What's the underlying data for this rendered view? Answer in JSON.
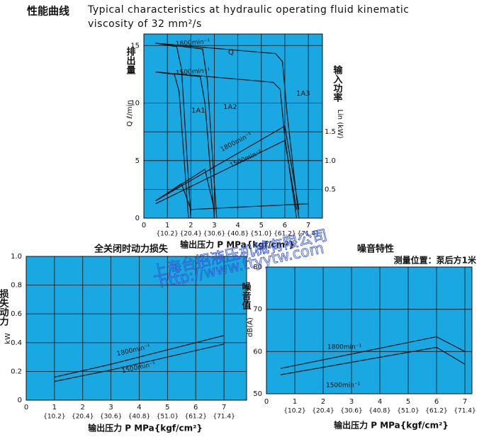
{
  "chart_data": [
    {
      "type": "line",
      "title": "性能曲线",
      "subtitle": [
        "Typical characteristics at hydraulic operating fluid kinematic",
        "viscosity of 32 mm²/s"
      ],
      "x_label": "输出压力 P MPa{kgf/cm²}",
      "y_label": [
        "排出量",
        "Q ℓ/min"
      ],
      "y2_label": [
        "输入功率",
        "Lin (kW)"
      ],
      "annotations": [
        "Q",
        "1A1",
        "1A2",
        "1A3"
      ],
      "xlim": [
        0,
        7.6
      ],
      "xticks": [
        0,
        1,
        2,
        3,
        4,
        5,
        6,
        7
      ],
      "xtick_sublabels": [
        "{10.2}",
        "{20.4}",
        "{30.6}",
        "{40.8}",
        "{51.0}",
        "{61.2}",
        "{71.4}"
      ],
      "ylim": [
        0,
        16
      ],
      "yticks": [
        0,
        5,
        10,
        15
      ],
      "y2lim": [
        0,
        3.2
      ],
      "y2ticks": [
        0.5,
        {
          "value": 1,
          "label": "1.0"
        },
        1.5
      ],
      "grid": true,
      "series": [
        {
          "name": "1800min⁻¹",
          "color": "#111111",
          "x": [
            0.5,
            5.6,
            5.9,
            6.1,
            6.6
          ],
          "values": [
            15.2,
            14.3,
            13.6,
            9,
            0
          ]
        },
        {
          "name": "1500min⁻¹",
          "color": "#111111",
          "x": [
            0.5,
            5.5,
            5.8,
            6.0,
            6.5
          ],
          "values": [
            12.7,
            11.8,
            11.2,
            7,
            0
          ]
        },
        {
          "color": "#111111",
          "x": [
            0.5,
            1.4,
            1.6,
            2.0
          ],
          "values": [
            15.2,
            14.9,
            13,
            0
          ]
        },
        {
          "color": "#111111",
          "x": [
            0.5,
            1.3,
            1.5,
            1.9
          ],
          "values": [
            12.7,
            12.5,
            11,
            0
          ]
        },
        {
          "color": "#111111",
          "x": [
            0.5,
            2.5,
            2.7,
            3.1
          ],
          "values": [
            15.2,
            14.7,
            12,
            0
          ]
        },
        {
          "color": "#111111",
          "x": [
            0.5,
            2.4,
            2.6,
            3.0
          ],
          "values": [
            12.7,
            12.3,
            10,
            0
          ]
        },
        {
          "name": "1800min⁻¹",
          "color": "#111111",
          "axis": "y2",
          "x": [
            0.5,
            6.0,
            6.6
          ],
          "values": [
            0.3,
            1.6,
            0.15
          ]
        },
        {
          "name": "1500min⁻¹",
          "color": "#111111",
          "axis": "y2",
          "x": [
            0.5,
            6.0,
            6.5
          ],
          "values": [
            0.25,
            1.35,
            0.15
          ]
        },
        {
          "color": "#111111",
          "axis": "y2",
          "x": [
            0.5,
            1.6,
            2.0
          ],
          "values": [
            0.3,
            0.6,
            0.15
          ]
        },
        {
          "color": "#111111",
          "axis": "y2",
          "x": [
            0.5,
            2.6,
            3.0
          ],
          "values": [
            0.3,
            0.85,
            0.15
          ]
        },
        {
          "color": "#111111",
          "axis": "y2",
          "x": [
            2.0,
            7.0
          ],
          "values": [
            0.15,
            0.25
          ]
        }
      ]
    },
    {
      "type": "line",
      "title": "全关闭时动力损失",
      "x_label": "输出压力 P MPa{kgf/cm²}",
      "y_label": [
        "损失动力",
        "kW"
      ],
      "xlim": [
        0,
        7.8
      ],
      "xticks": [
        0,
        1,
        2,
        3,
        4,
        5,
        6,
        7
      ],
      "xtick_sublabels": [
        "{10.2}",
        "{20.4}",
        "{30.6}",
        "{40.8}",
        "{51.0}",
        "{61.2}",
        "{71.4}"
      ],
      "ylim": [
        0,
        1.0
      ],
      "yticks": [
        0,
        0.2,
        0.4,
        0.6,
        0.8,
        {
          "value": 1,
          "label": "1.0"
        }
      ],
      "grid": true,
      "series": [
        {
          "name": "1800min⁻¹",
          "color": "#111111",
          "x": [
            1,
            3,
            5,
            7
          ],
          "values": [
            0.16,
            0.25,
            0.35,
            0.45
          ]
        },
        {
          "name": "1500min⁻¹",
          "color": "#111111",
          "x": [
            1,
            3,
            5,
            7
          ],
          "values": [
            0.13,
            0.21,
            0.3,
            0.39
          ]
        }
      ]
    },
    {
      "type": "line",
      "title": "噪音特性",
      "subtitle": [
        "测量位置：泵后方1米"
      ],
      "x_label": "输出压力 P MPa{kgf/cm²}",
      "y_label": [
        "噪音值",
        "dB(A)"
      ],
      "xlim": [
        0,
        7.25
      ],
      "xticks": [
        0,
        1,
        2,
        3,
        4,
        5,
        6,
        7
      ],
      "xtick_sublabels": [
        "{10.2}",
        "{20.4}",
        "{30.6}",
        "{40.8}",
        "{51.0}",
        "{61.2}",
        "{71.4}"
      ],
      "ylim": [
        50,
        80
      ],
      "yticks": [
        50,
        60,
        70,
        80
      ],
      "grid": true,
      "series": [
        {
          "name": "1800min⁻¹",
          "color": "#111111",
          "x": [
            0.5,
            6.0,
            7.0
          ],
          "values": [
            56,
            63.5,
            60
          ]
        },
        {
          "name": "1500min⁻¹",
          "color": "#111111",
          "x": [
            0.5,
            6.0,
            7.0
          ],
          "values": [
            54.5,
            61,
            57
          ]
        }
      ]
    }
  ],
  "watermark": [
    "上海台招液压机械有限公司",
    "http://www.ttyytw.com"
  ]
}
